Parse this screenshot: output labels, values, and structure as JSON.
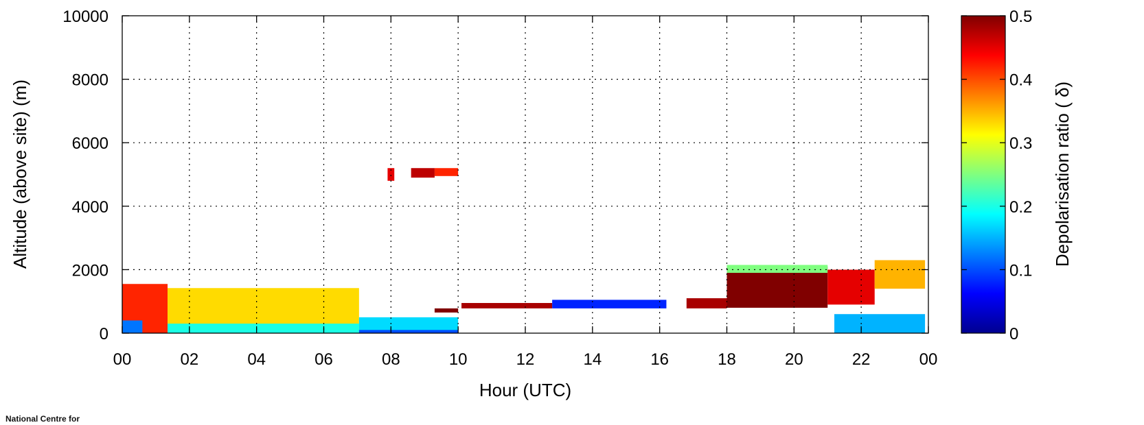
{
  "chart_data": {
    "type": "heatmap",
    "title": "",
    "xlabel": "Hour (UTC)",
    "ylabel": "Altitude (above site) (m)",
    "x_ticks": [
      "00",
      "02",
      "04",
      "06",
      "08",
      "10",
      "12",
      "14",
      "16",
      "18",
      "20",
      "22",
      "00"
    ],
    "y_ticks": [
      "0",
      "2000",
      "4000",
      "6000",
      "8000",
      "10000"
    ],
    "xlim": [
      0,
      24
    ],
    "ylim": [
      0,
      10000
    ],
    "grid": true,
    "colorbar": {
      "label": "Depolarisation ratio ( δ)",
      "ticks": [
        "0",
        "0.1",
        "0.2",
        "0.3",
        "0.4",
        "0.5"
      ],
      "range": [
        0,
        0.5
      ],
      "colormap": "jet"
    },
    "regions": [
      {
        "x0": 0.0,
        "x1": 1.35,
        "y0": 0,
        "y1": 1550,
        "value": 0.42
      },
      {
        "x0": 0.0,
        "x1": 0.6,
        "y0": 0,
        "y1": 400,
        "value": 0.12
      },
      {
        "x0": 1.35,
        "x1": 7.05,
        "y0": 0,
        "y1": 1420,
        "value": 0.33
      },
      {
        "x0": 1.35,
        "x1": 7.05,
        "y0": 0,
        "y1": 300,
        "value": 0.2
      },
      {
        "x0": 7.05,
        "x1": 10.0,
        "y0": 0,
        "y1": 500,
        "value": 0.17
      },
      {
        "x0": 7.05,
        "x1": 10.0,
        "y0": 0,
        "y1": 100,
        "value": 0.1
      },
      {
        "x0": 9.3,
        "x1": 10.0,
        "y0": 650,
        "y1": 780,
        "value": 0.5
      },
      {
        "x0": 7.9,
        "x1": 8.1,
        "y0": 4800,
        "y1": 5200,
        "value": 0.45
      },
      {
        "x0": 8.6,
        "x1": 9.3,
        "y0": 4900,
        "y1": 5200,
        "value": 0.47
      },
      {
        "x0": 9.3,
        "x1": 10.0,
        "y0": 4950,
        "y1": 5200,
        "value": 0.42
      },
      {
        "x0": 10.1,
        "x1": 12.8,
        "y0": 780,
        "y1": 950,
        "value": 0.48
      },
      {
        "x0": 12.8,
        "x1": 16.2,
        "y0": 780,
        "y1": 1050,
        "value": 0.08
      },
      {
        "x0": 16.8,
        "x1": 18.0,
        "y0": 780,
        "y1": 1100,
        "value": 0.48
      },
      {
        "x0": 18.0,
        "x1": 21.0,
        "y0": 800,
        "y1": 2100,
        "value": 0.5
      },
      {
        "x0": 18.0,
        "x1": 21.0,
        "y0": 1900,
        "y1": 2150,
        "value": 0.25
      },
      {
        "x0": 21.0,
        "x1": 22.4,
        "y0": 900,
        "y1": 2000,
        "value": 0.45
      },
      {
        "x0": 22.4,
        "x1": 23.9,
        "y0": 1400,
        "y1": 2300,
        "value": 0.35
      },
      {
        "x0": 21.2,
        "x1": 23.9,
        "y0": 0,
        "y1": 600,
        "value": 0.15
      }
    ]
  },
  "footer": {
    "logo_text": "National Centre for"
  }
}
